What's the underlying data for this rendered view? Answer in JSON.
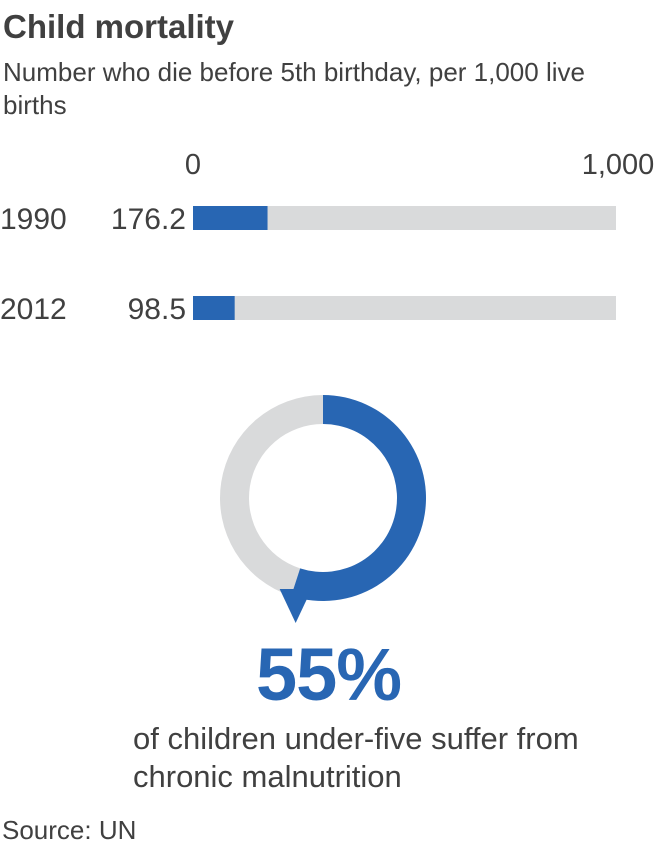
{
  "header": {
    "title": "Child mortality",
    "subtitle": "Number who die before 5th birthday, per 1,000 live births"
  },
  "chart_data": [
    {
      "type": "bar",
      "orientation": "horizontal",
      "title": "Child mortality",
      "subtitle": "Number who die before 5th birthday, per 1,000 live births",
      "categories": [
        "1990",
        "2012"
      ],
      "values": [
        176.2,
        98.5
      ],
      "value_labels": [
        "176.2",
        "98.5"
      ],
      "xlim": [
        0,
        1000
      ],
      "tick_labels": [
        "0",
        "1,000"
      ],
      "grid": false,
      "legend": "none"
    },
    {
      "type": "pie",
      "style": "donut",
      "values": [
        55,
        45
      ],
      "label": "55%",
      "caption": "of children under-five suffer from chronic malnutrition",
      "grid": false,
      "legend": "none"
    }
  ],
  "footer": {
    "source": "Source: UN"
  },
  "colors": {
    "accent": "#2866b3",
    "track": "#d9dadb",
    "text": "#404040"
  }
}
